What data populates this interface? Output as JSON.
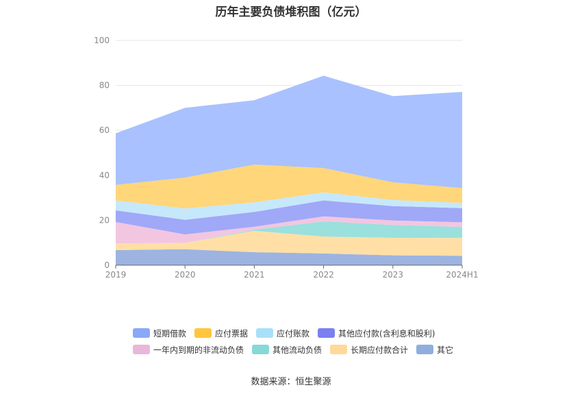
{
  "title": "历年主要负债堆积图（亿元）",
  "source": "数据来源：恒生聚源",
  "chart_data": {
    "type": "area",
    "stacked": true,
    "categories": [
      "2019",
      "2020",
      "2021",
      "2022",
      "2023",
      "2024H1"
    ],
    "ylim": [
      0,
      100
    ],
    "yticks": [
      "0",
      "20",
      "40",
      "60",
      "80",
      "100"
    ],
    "grid": true,
    "legend_position": "bottom",
    "series": [
      {
        "name": "其它",
        "color": "#9DB4E0",
        "values": [
          6.7,
          7.1,
          5.8,
          5.2,
          4.4,
          4.2
        ]
      },
      {
        "name": "长期应付款合计",
        "color": "#FFDFA6",
        "values": [
          3.0,
          2.8,
          9.5,
          7.5,
          7.8,
          7.9
        ]
      },
      {
        "name": "其他流动负债",
        "color": "#9AE0DD",
        "values": [
          0.0,
          0.0,
          0.5,
          6.8,
          5.7,
          4.9
        ]
      },
      {
        "name": "一年内到期的非流动负债",
        "color": "#F2C6E0",
        "values": [
          9.5,
          3.8,
          1.3,
          2.2,
          2.0,
          2.1
        ]
      },
      {
        "name": "其他应付款(含利息和股利)",
        "color": "#A0A8F8",
        "values": [
          5.2,
          6.5,
          6.6,
          7.1,
          6.4,
          6.3
        ]
      },
      {
        "name": "应付账款",
        "color": "#C6E8FB",
        "values": [
          4.4,
          5.0,
          4.3,
          3.6,
          2.7,
          2.3
        ]
      },
      {
        "name": "应付票据",
        "color": "#FFD67A",
        "values": [
          6.9,
          13.8,
          16.8,
          10.8,
          7.9,
          6.6
        ]
      },
      {
        "name": "短期借款",
        "color": "#A9C1FE",
        "values": [
          23.0,
          31.0,
          28.6,
          41.1,
          38.3,
          42.8
        ]
      }
    ]
  },
  "legend": [
    {
      "name": "短期借款",
      "color": "#8AA8F8"
    },
    {
      "name": "应付票据",
      "color": "#FFC53D"
    },
    {
      "name": "应付账款",
      "color": "#A8E0FA"
    },
    {
      "name": "其他应付款(含利息和股利)",
      "color": "#7B7FF0"
    },
    {
      "name": "一年内到期的非流动负债",
      "color": "#E9B7DA"
    },
    {
      "name": "其他流动负债",
      "color": "#86D9D6"
    },
    {
      "name": "长期应付款合计",
      "color": "#FFD99A"
    },
    {
      "name": "其它",
      "color": "#8FAEDC"
    }
  ]
}
